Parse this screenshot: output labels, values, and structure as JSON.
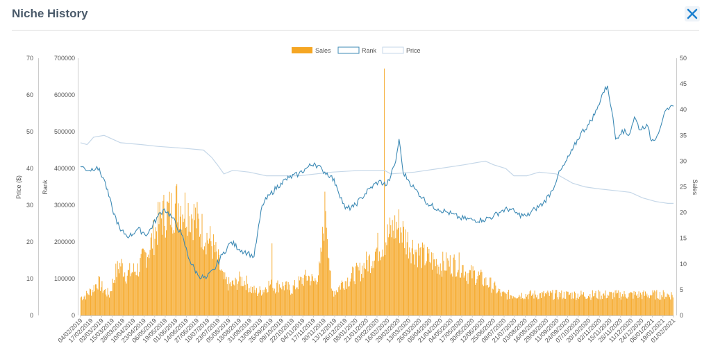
{
  "header": {
    "title": "Niche History"
  },
  "chart_data": {
    "type": "bar+line",
    "legend": [
      "Sales",
      "Rank",
      "Price"
    ],
    "colors": {
      "sales": "#f5a623",
      "rank": "#3d8ab5",
      "price": "#c5d7e8"
    },
    "axes": {
      "price": {
        "label": "Price ($)",
        "min": 0,
        "max": 70,
        "ticks": [
          0,
          10,
          20,
          30,
          40,
          50,
          60,
          70
        ]
      },
      "rank": {
        "label": "Rank",
        "min": 0,
        "max": 700000,
        "ticks": [
          0,
          100000,
          200000,
          300000,
          400000,
          500000,
          600000,
          700000
        ]
      },
      "sales": {
        "label": "Sales",
        "min": 0,
        "max": 50,
        "ticks": [
          0,
          5,
          10,
          15,
          20,
          25,
          30,
          35,
          40,
          45,
          50
        ]
      }
    },
    "x_start": "2019-02-04",
    "x_end": "2021-02-01",
    "x_labels": [
      "04/02/2019",
      "17/02/2019",
      "02/03/2019",
      "15/03/2019",
      "28/03/2019",
      "10/04/2019",
      "23/04/2019",
      "06/05/2019",
      "19/05/2019",
      "01/06/2019",
      "14/06/2019",
      "27/06/2019",
      "10/07/2019",
      "23/07/2019",
      "05/08/2019",
      "18/08/2019",
      "31/08/2019",
      "13/09/2019",
      "26/09/2019",
      "09/10/2019",
      "22/10/2019",
      "04/11/2019",
      "17/11/2019",
      "30/11/2019",
      "13/12/2019",
      "26/12/2019",
      "08/01/2020",
      "21/01/2020",
      "03/02/2020",
      "16/02/2020",
      "29/02/2020",
      "13/03/2020",
      "26/03/2020",
      "08/04/2020",
      "21/04/2020",
      "04/05/2020",
      "17/05/2020",
      "30/05/2020",
      "12/06/2020",
      "25/06/2020",
      "08/07/2020",
      "21/07/2020",
      "03/08/2020",
      "16/08/2020",
      "29/08/2020",
      "11/09/2020",
      "24/09/2020",
      "07/10/2020",
      "20/10/2020",
      "02/11/2020",
      "15/11/2020",
      "28/11/2020",
      "11/12/2020",
      "24/12/2020",
      "06/01/2021",
      "19/01/2021",
      "01/02/2021"
    ],
    "sales_weekly": [
      3.5,
      4,
      5,
      6.5,
      5,
      4,
      8,
      10,
      8,
      8.5,
      9,
      11,
      13,
      16,
      19,
      20,
      20.5,
      22,
      21,
      20.5,
      19,
      17,
      15.5,
      14,
      11,
      7,
      6,
      6,
      7,
      6.5,
      5,
      4.5,
      5,
      6,
      5.5,
      6,
      5.5,
      5,
      6,
      7,
      7.5,
      6.5,
      9,
      22,
      4.5,
      5,
      6.5,
      7,
      8,
      8.5,
      10,
      11,
      13,
      14,
      15.5,
      17,
      17.5,
      15,
      13.5,
      12.5,
      11.5,
      11,
      10.5,
      10,
      10,
      10,
      10,
      9.5,
      8,
      8,
      7.5,
      6.5,
      6,
      5,
      4,
      4,
      4,
      4,
      4,
      4,
      4,
      4,
      4,
      4
    ],
    "sales_spikes": [
      {
        "date": "2019-09-27",
        "value": 14
      },
      {
        "date": "2020-02-12",
        "value": 48
      }
    ],
    "rank_points": [
      [
        "2019-02-04",
        405000
      ],
      [
        "2019-02-15",
        395000
      ],
      [
        "2019-02-24",
        405000
      ],
      [
        "2019-03-05",
        370000
      ],
      [
        "2019-03-15",
        290000
      ],
      [
        "2019-03-25",
        230000
      ],
      [
        "2019-04-05",
        215000
      ],
      [
        "2019-04-15",
        235000
      ],
      [
        "2019-04-27",
        220000
      ],
      [
        "2019-05-10",
        270000
      ],
      [
        "2019-05-18",
        290000
      ],
      [
        "2019-05-28",
        265000
      ],
      [
        "2019-06-08",
        220000
      ],
      [
        "2019-06-18",
        150000
      ],
      [
        "2019-06-28",
        110000
      ],
      [
        "2019-07-08",
        100000
      ],
      [
        "2019-07-18",
        125000
      ],
      [
        "2019-07-28",
        165000
      ],
      [
        "2019-08-08",
        200000
      ],
      [
        "2019-08-18",
        180000
      ],
      [
        "2019-08-28",
        170000
      ],
      [
        "2019-09-05",
        160000
      ],
      [
        "2019-09-15",
        300000
      ],
      [
        "2019-09-25",
        330000
      ],
      [
        "2019-10-08",
        360000
      ],
      [
        "2019-10-18",
        375000
      ],
      [
        "2019-10-30",
        385000
      ],
      [
        "2019-11-08",
        400000
      ],
      [
        "2019-11-18",
        415000
      ],
      [
        "2019-11-28",
        395000
      ],
      [
        "2019-12-08",
        380000
      ],
      [
        "2019-12-15",
        355000
      ],
      [
        "2019-12-26",
        290000
      ],
      [
        "2020-01-05",
        295000
      ],
      [
        "2020-01-15",
        320000
      ],
      [
        "2020-01-25",
        345000
      ],
      [
        "2020-02-05",
        365000
      ],
      [
        "2020-02-15",
        355000
      ],
      [
        "2020-02-20",
        380000
      ],
      [
        "2020-02-26",
        420000
      ],
      [
        "2020-03-01",
        480000
      ],
      [
        "2020-03-06",
        390000
      ],
      [
        "2020-03-12",
        370000
      ],
      [
        "2020-03-20",
        345000
      ],
      [
        "2020-03-30",
        320000
      ],
      [
        "2020-04-08",
        300000
      ],
      [
        "2020-04-18",
        290000
      ],
      [
        "2020-04-30",
        280000
      ],
      [
        "2020-05-15",
        265000
      ],
      [
        "2020-05-30",
        260000
      ],
      [
        "2020-06-12",
        260000
      ],
      [
        "2020-06-25",
        270000
      ],
      [
        "2020-07-05",
        285000
      ],
      [
        "2020-07-15",
        290000
      ],
      [
        "2020-07-25",
        275000
      ],
      [
        "2020-08-05",
        270000
      ],
      [
        "2020-08-15",
        290000
      ],
      [
        "2020-08-25",
        305000
      ],
      [
        "2020-09-05",
        340000
      ],
      [
        "2020-09-12",
        380000
      ],
      [
        "2020-09-20",
        410000
      ],
      [
        "2020-09-30",
        450000
      ],
      [
        "2020-10-10",
        495000
      ],
      [
        "2020-10-20",
        520000
      ],
      [
        "2020-10-30",
        560000
      ],
      [
        "2020-11-05",
        600000
      ],
      [
        "2020-11-12",
        625000
      ],
      [
        "2020-11-17",
        560000
      ],
      [
        "2020-11-22",
        480000
      ],
      [
        "2020-11-30",
        505000
      ],
      [
        "2020-12-08",
        490000
      ],
      [
        "2020-12-15",
        540000
      ],
      [
        "2020-12-22",
        505000
      ],
      [
        "2020-12-30",
        520000
      ],
      [
        "2021-01-05",
        475000
      ],
      [
        "2021-01-12",
        490000
      ],
      [
        "2021-01-20",
        545000
      ],
      [
        "2021-01-26",
        560000
      ],
      [
        "2021-02-01",
        570000
      ]
    ],
    "price_points": [
      [
        "2019-02-04",
        47
      ],
      [
        "2019-02-12",
        46.5
      ],
      [
        "2019-02-20",
        48.5
      ],
      [
        "2019-03-05",
        49
      ],
      [
        "2019-03-25",
        47
      ],
      [
        "2019-04-20",
        46.5
      ],
      [
        "2019-05-10",
        46
      ],
      [
        "2019-06-10",
        45.5
      ],
      [
        "2019-07-05",
        45
      ],
      [
        "2019-07-15",
        43
      ],
      [
        "2019-07-22",
        41
      ],
      [
        "2019-07-30",
        38.5
      ],
      [
        "2019-08-10",
        39.5
      ],
      [
        "2019-08-30",
        39
      ],
      [
        "2019-09-20",
        38
      ],
      [
        "2019-10-30",
        38
      ],
      [
        "2019-12-10",
        39
      ],
      [
        "2020-01-15",
        39.5
      ],
      [
        "2020-02-12",
        39.5
      ],
      [
        "2020-02-20",
        38.5
      ],
      [
        "2020-03-20",
        39
      ],
      [
        "2020-04-20",
        40
      ],
      [
        "2020-05-20",
        41
      ],
      [
        "2020-06-15",
        42
      ],
      [
        "2020-06-25",
        41
      ],
      [
        "2020-07-10",
        40
      ],
      [
        "2020-07-20",
        38
      ],
      [
        "2020-08-05",
        38
      ],
      [
        "2020-08-20",
        39
      ],
      [
        "2020-09-10",
        38.5
      ],
      [
        "2020-09-30",
        36
      ],
      [
        "2020-10-15",
        35
      ],
      [
        "2020-10-30",
        34.5
      ],
      [
        "2020-11-20",
        34
      ],
      [
        "2020-12-10",
        33.5
      ],
      [
        "2020-12-25",
        32
      ],
      [
        "2021-01-10",
        31
      ],
      [
        "2021-01-25",
        30.5
      ],
      [
        "2021-02-01",
        30.5
      ]
    ]
  }
}
